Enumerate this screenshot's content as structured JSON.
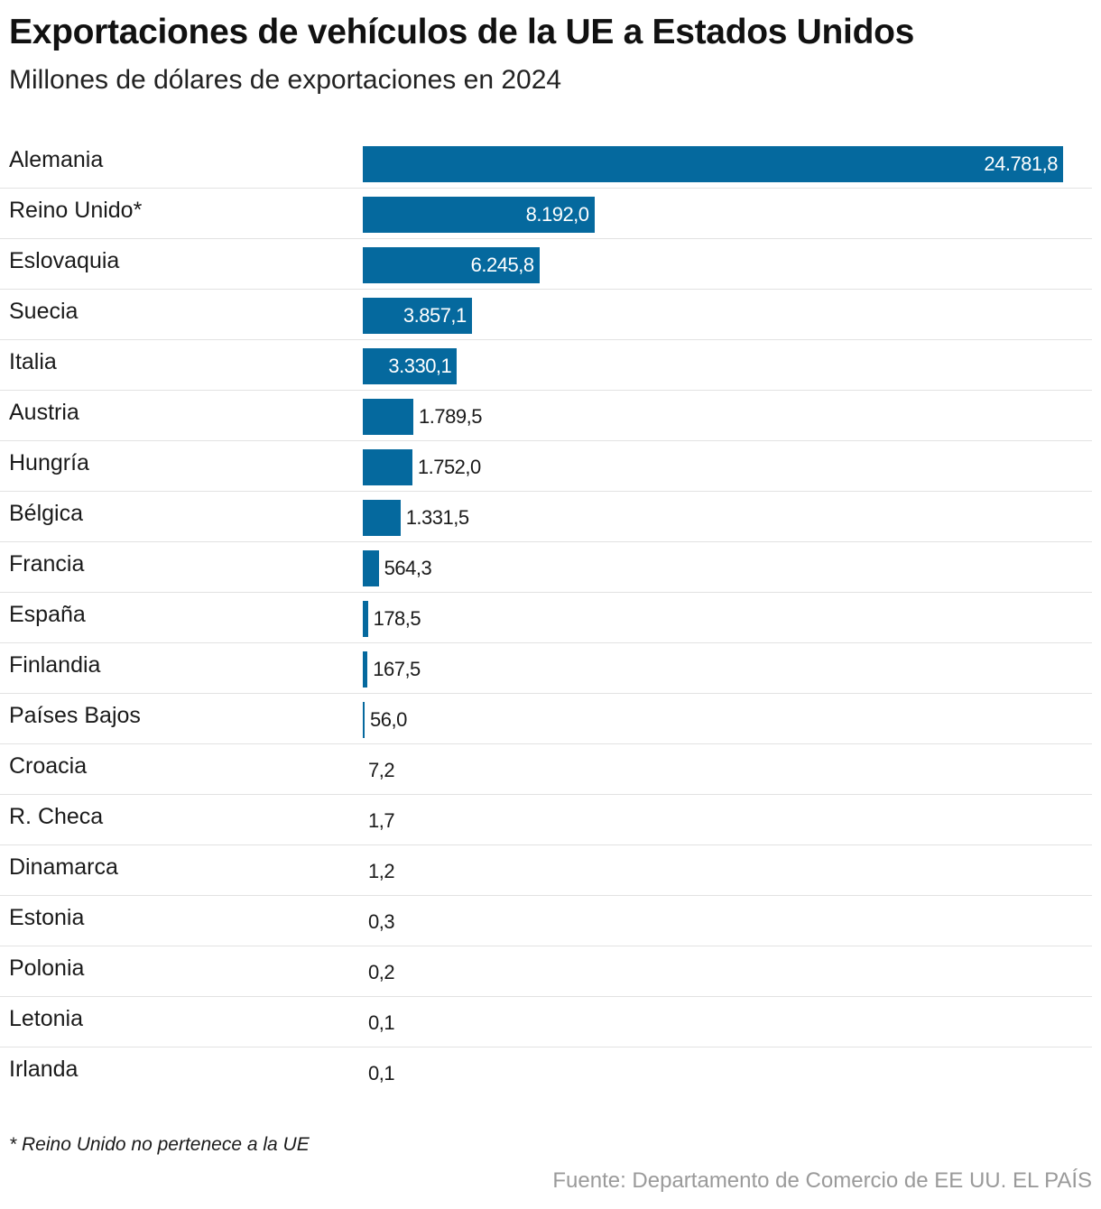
{
  "header": {
    "title": "Exportaciones de vehículos de la UE a Estados Unidos",
    "subtitle": "Millones de dólares de exportaciones en 2024"
  },
  "footer": {
    "footnote": "* Reino Unido no pertenece a la UE",
    "source": "Fuente: Departamento de Comercio de EE UU. EL PAÍS"
  },
  "colors": {
    "bar": "#05699e",
    "row_divider": "#e2e2e2",
    "source_text": "#9a9a9a"
  },
  "chart_data": {
    "type": "bar",
    "orientation": "horizontal",
    "title": "Exportaciones de vehículos de la UE a Estados Unidos",
    "subtitle": "Millones de dólares de exportaciones en 2024",
    "xlabel": "",
    "ylabel": "",
    "xlim": [
      0,
      24781.8
    ],
    "grid": false,
    "categories": [
      "Alemania",
      "Reino Unido*",
      "Eslovaquia",
      "Suecia",
      "Italia",
      "Austria",
      "Hungría",
      "Bélgica",
      "Francia",
      "España",
      "Finlandia",
      "Países Bajos",
      "Croacia",
      "R. Checa",
      "Dinamarca",
      "Estonia",
      "Polonia",
      "Letonia",
      "Irlanda"
    ],
    "values": [
      24781.8,
      8192.0,
      6245.8,
      3857.1,
      3330.1,
      1789.5,
      1752.0,
      1331.5,
      564.3,
      178.5,
      167.5,
      56.0,
      7.2,
      1.7,
      1.2,
      0.3,
      0.2,
      0.1,
      0.1
    ],
    "value_labels": [
      "24.781,8",
      "8.192,0",
      "6.245,8",
      "3.857,1",
      "3.330,1",
      "1.789,5",
      "1.752,0",
      "1.331,5",
      "564,3",
      "178,5",
      "167,5",
      "56,0",
      "7,2",
      "1,7",
      "1,2",
      "0,3",
      "0,2",
      "0,1",
      "0,1"
    ]
  }
}
